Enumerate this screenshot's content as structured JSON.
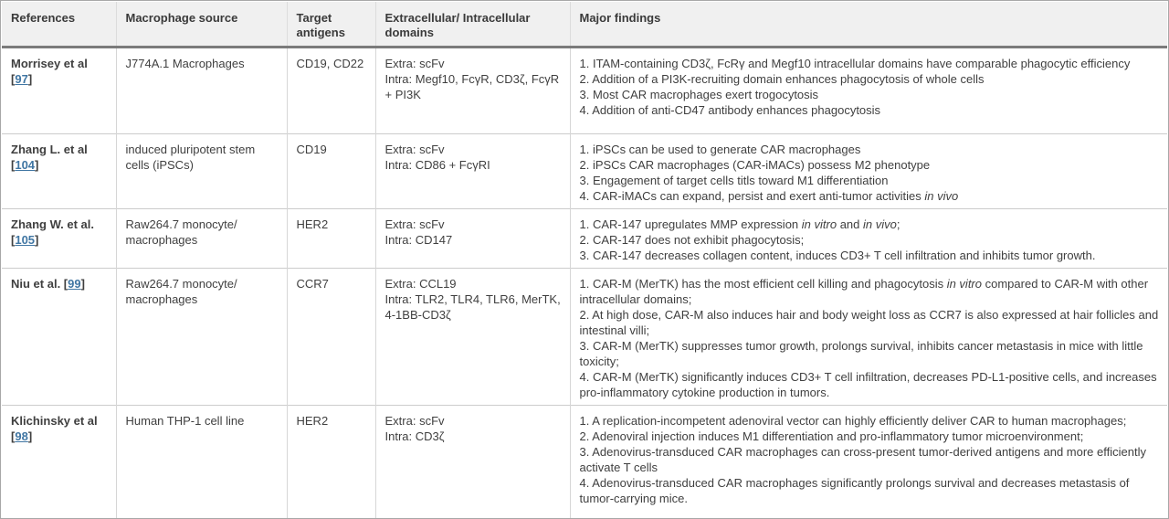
{
  "colors": {
    "link": "#4076a3",
    "header_bg": "#f0f0f0",
    "header_text": "#3a3a3a",
    "body_text": "#3f3f3f",
    "border_outer": "#a8a8a8",
    "border_inner": "#d6d6d6",
    "header_rule": "#7b7b7b",
    "row_divider": "#cccccc"
  },
  "table": {
    "columns": [
      "References",
      "Macrophage source",
      "Target antigens",
      "Extracellular/ Intracellular domains",
      "Major findings"
    ],
    "rows": [
      {
        "reference": {
          "name": "Morrisey et al",
          "link": "97"
        },
        "source": "J774A.1 Macrophages",
        "antigens": "CD19, CD22",
        "domains": [
          "Extra: scFv",
          "Intra: Megf10, FcγR, CD3ζ, FcγR + PI3K"
        ],
        "findings": [
          [
            {
              "t": "1. ITAM-containing CD3ζ, FcRγ and Megf10 intracellular domains have comparable phagocytic efficiency"
            }
          ],
          [
            {
              "t": "2. Addition of a PI3K-recruiting domain enhances phagocytosis of whole cells"
            }
          ],
          [
            {
              "t": "3. Most CAR macrophages exert trogocytosis"
            }
          ],
          [
            {
              "t": "4. Addition of anti-CD47 antibody enhances phagocytosis"
            }
          ]
        ]
      },
      {
        "reference": {
          "name": "Zhang L. et al",
          "link": "104"
        },
        "source": "induced pluripotent stem cells (iPSCs)",
        "antigens": "CD19",
        "domains": [
          "Extra: scFv",
          "Intra: CD86 + FcγRI"
        ],
        "findings": [
          [
            {
              "t": "1. iPSCs can be used to generate CAR macrophages"
            }
          ],
          [
            {
              "t": "2. iPSCs CAR macrophages (CAR-iMACs) possess M2 phenotype"
            }
          ],
          [
            {
              "t": "3. Engagement of target cells titls toward M1 differentiation"
            }
          ],
          [
            {
              "t": "4. CAR-iMACs can expand, persist and exert anti-tumor activities "
            },
            {
              "t": "in vivo",
              "i": true
            }
          ]
        ]
      },
      {
        "reference": {
          "name": "Zhang W. et al.",
          "link": "105"
        },
        "source": "Raw264.7 monocyte/ macrophages",
        "antigens": "HER2",
        "domains": [
          "Extra: scFv",
          "Intra: CD147"
        ],
        "findings": [
          [
            {
              "t": "1. CAR-147 upregulates MMP expression "
            },
            {
              "t": "in vitro",
              "i": true
            },
            {
              "t": " and "
            },
            {
              "t": "in vivo",
              "i": true
            },
            {
              "t": ";"
            }
          ],
          [
            {
              "t": "2. CAR-147 does not exhibit phagocytosis;"
            }
          ],
          [
            {
              "t": "3. CAR-147 decreases collagen content, induces CD3+ T cell infiltration and inhibits tumor growth."
            }
          ]
        ]
      },
      {
        "reference": {
          "name": "Niu et al.",
          "link": "99"
        },
        "source": "Raw264.7 monocyte/ macrophages",
        "antigens": "CCR7",
        "domains": [
          "Extra: CCL19",
          "Intra: TLR2, TLR4, TLR6, MerTK, 4-1BB-CD3ζ"
        ],
        "findings": [
          [
            {
              "t": "1. CAR-M (MerTK) has the most efficient cell killing and phagocytosis "
            },
            {
              "t": "in vitro",
              "i": true
            },
            {
              "t": " compared to CAR-M with other intracellular domains;"
            }
          ],
          [
            {
              "t": "2. At high dose, CAR-M also induces hair and body weight loss as CCR7 is also expressed at hair follicles and intestinal villi;"
            }
          ],
          [
            {
              "t": "3. CAR-M (MerTK) suppresses tumor growth, prolongs survival, inhibits cancer metastasis in mice with little toxicity;"
            }
          ],
          [
            {
              "t": "4. CAR-M (MerTK) significantly induces CD3+ T cell infiltration, decreases PD-L1-positive cells, and increases pro-inflammatory cytokine production in tumors."
            }
          ]
        ]
      },
      {
        "reference": {
          "name": "Klichinsky et al",
          "link": "98"
        },
        "source": "Human THP-1 cell line",
        "antigens": "HER2",
        "domains": [
          "Extra: scFv",
          "Intra: CD3ζ"
        ],
        "findings": [
          [
            {
              "t": "1. A replication-incompetent adenoviral vector can highly efficiently deliver CAR to human macrophages;"
            }
          ],
          [
            {
              "t": "2. Adenoviral injection induces M1 differentiation and pro-inflammatory tumor microenvironment;"
            }
          ],
          [
            {
              "t": "3. Adenovirus-transduced CAR macrophages can cross-present tumor-derived antigens and more efficiently activate T cells"
            }
          ],
          [
            {
              "t": "4. Adenovirus-transduced CAR macrophages significantly prolongs survival and decreases metastasis of tumor-carrying mice."
            }
          ]
        ]
      }
    ]
  }
}
